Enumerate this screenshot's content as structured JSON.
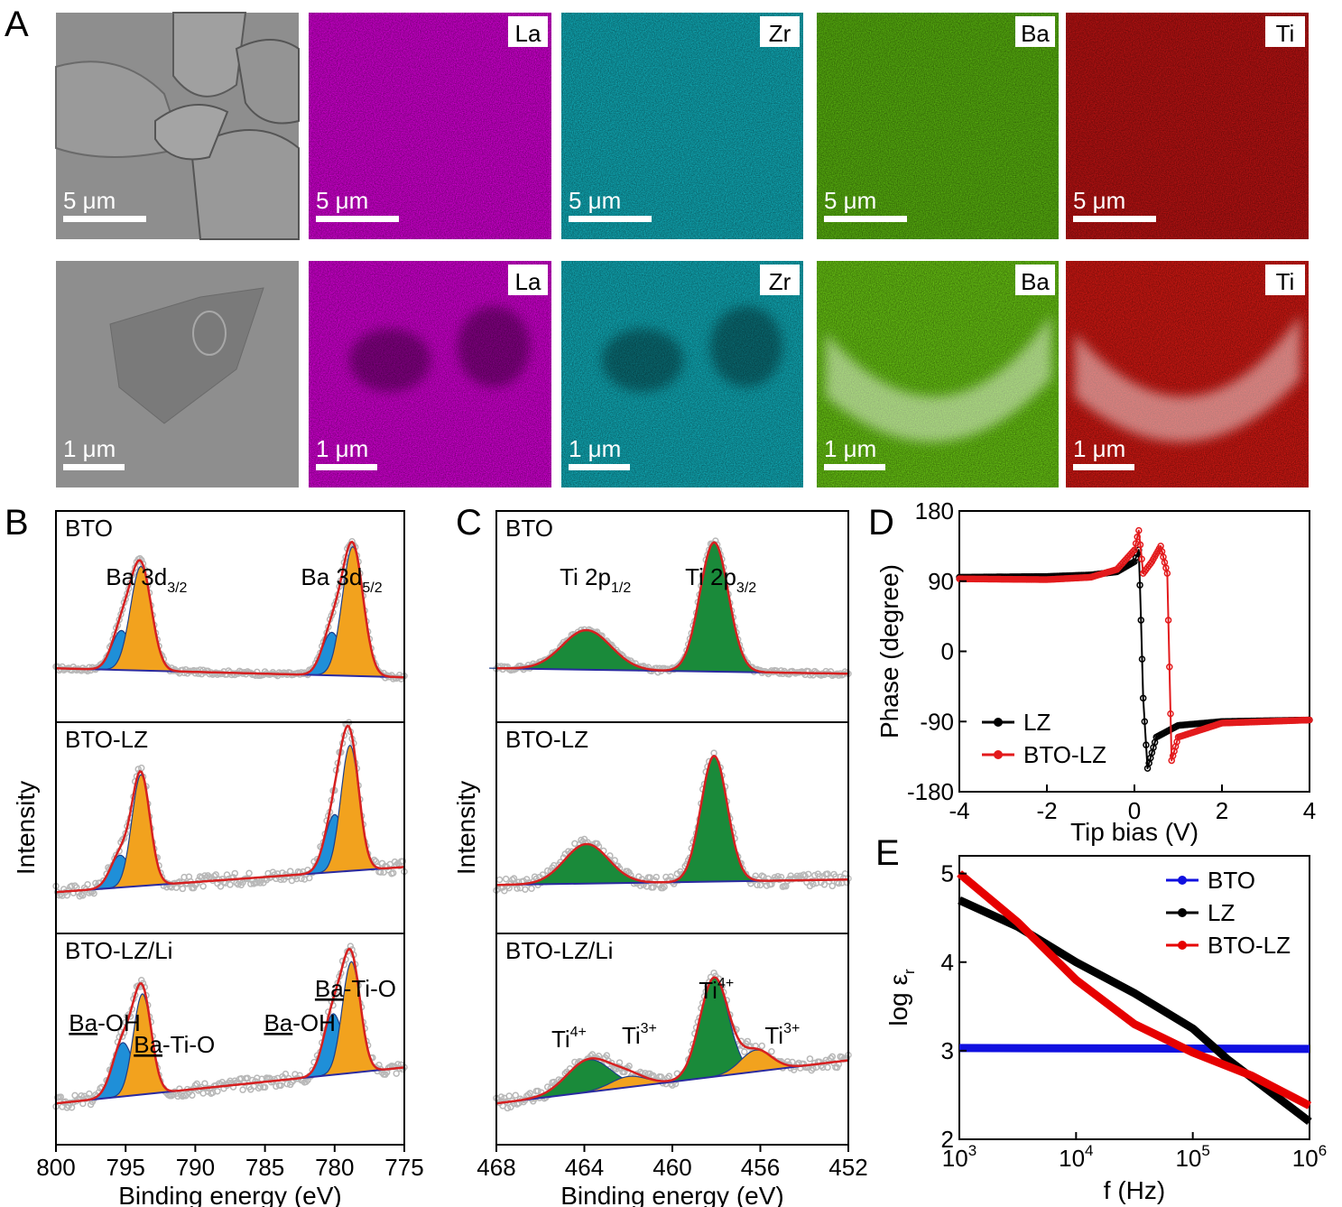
{
  "panels": {
    "A": {
      "letter": "A",
      "rows": [
        {
          "scale_label": "5 μm",
          "tiles": [
            {
              "kind": "sem",
              "tag": ""
            },
            {
              "kind": "map",
              "tag": "La",
              "color": "#e000e0"
            },
            {
              "kind": "map",
              "tag": "Zr",
              "color": "#12b7c4"
            },
            {
              "kind": "map",
              "tag": "Ba",
              "color": "#5fbf10"
            },
            {
              "kind": "map",
              "tag": "Ti",
              "color": "#c81414"
            }
          ]
        },
        {
          "scale_label": "1 μm",
          "tiles": [
            {
              "kind": "sem",
              "tag": ""
            },
            {
              "kind": "map",
              "tag": "La",
              "color": "#e000e0"
            },
            {
              "kind": "map",
              "tag": "Zr",
              "color": "#12b7c4"
            },
            {
              "kind": "map",
              "tag": "Ba",
              "color": "#6fd214"
            },
            {
              "kind": "map",
              "tag": "Ti",
              "color": "#e01a14"
            }
          ]
        }
      ]
    },
    "B": {
      "letter": "B"
    },
    "C": {
      "letter": "C"
    },
    "D": {
      "letter": "D"
    },
    "E": {
      "letter": "E"
    }
  },
  "chart_data": [
    {
      "id": "B",
      "type": "line",
      "xlabel": "Binding energy (eV)",
      "ylabel": "Intensity",
      "xlim": [
        800,
        775
      ],
      "xticks": [
        "800",
        "795",
        "790",
        "785",
        "780",
        "775"
      ],
      "subplots": [
        {
          "label": "BTO",
          "peak_labels": [
            {
              "text": "Ba 3d",
              "sub": "3/2",
              "x": 793.5
            },
            {
              "text": "Ba 3d",
              "sub": "5/2",
              "x": 779.5
            }
          ],
          "baseline": [
            [
              800,
              0.25
            ],
            [
              775,
              0.2
            ]
          ],
          "peaks": [
            {
              "center": 795.3,
              "height": 0.22,
              "sigma": 0.7,
              "color": "#1f8fd8"
            },
            {
              "center": 793.9,
              "height": 0.58,
              "sigma": 0.75,
              "color": "#f2a21e"
            },
            {
              "center": 780.2,
              "height": 0.24,
              "sigma": 0.7,
              "color": "#1f8fd8"
            },
            {
              "center": 778.7,
              "height": 0.72,
              "sigma": 0.75,
              "color": "#f2a21e"
            }
          ]
        },
        {
          "label": "BTO-LZ",
          "peak_labels": [],
          "baseline": [
            [
              800,
              0.18
            ],
            [
              775,
              0.32
            ]
          ],
          "peaks": [
            {
              "center": 795.4,
              "height": 0.18,
              "sigma": 0.7,
              "color": "#1f8fd8"
            },
            {
              "center": 793.9,
              "height": 0.62,
              "sigma": 0.65,
              "color": "#f2a21e"
            },
            {
              "center": 780.0,
              "height": 0.32,
              "sigma": 0.7,
              "color": "#1f8fd8"
            },
            {
              "center": 778.9,
              "height": 0.7,
              "sigma": 0.65,
              "color": "#f2a21e"
            }
          ]
        },
        {
          "label": "BTO-LZ/Li",
          "peak_labels": [
            {
              "text": "Ba-OH",
              "underline": "Ba",
              "x": 796.5
            },
            {
              "text": "Ba-Ti-O",
              "underline": "Ba",
              "x": 791.5
            },
            {
              "text": "Ba-OH",
              "underline": "Ba",
              "x": 782.5
            },
            {
              "text": "Ba-Ti-O",
              "underline": "Ba",
              "x": 778.5
            }
          ],
          "baseline": [
            [
              800,
              0.18
            ],
            [
              775,
              0.38
            ]
          ],
          "peaks": [
            {
              "center": 795.2,
              "height": 0.3,
              "sigma": 0.75,
              "color": "#1f8fd8"
            },
            {
              "center": 793.8,
              "height": 0.56,
              "sigma": 0.65,
              "color": "#f2a21e"
            },
            {
              "center": 780.1,
              "height": 0.34,
              "sigma": 0.7,
              "color": "#1f8fd8"
            },
            {
              "center": 778.8,
              "height": 0.62,
              "sigma": 0.65,
              "color": "#f2a21e"
            }
          ]
        }
      ]
    },
    {
      "id": "C",
      "type": "line",
      "xlabel": "Binding energy (eV)",
      "ylabel": "Intensity",
      "xlim": [
        468,
        452
      ],
      "xticks": [
        "468",
        "464",
        "460",
        "456",
        "452"
      ],
      "subplots": [
        {
          "label": "BTO",
          "peak_labels": [
            {
              "text": "Ti 2p",
              "sub": "1/2",
              "x": 463.5
            },
            {
              "text": "Ti 2p",
              "sub": "3/2",
              "x": 457.8
            }
          ],
          "baseline": [
            [
              468,
              0.25
            ],
            [
              452,
              0.22
            ]
          ],
          "peaks": [
            {
              "center": 463.9,
              "height": 0.22,
              "sigma": 1.1,
              "color": "#1a8a3a"
            },
            {
              "center": 458.1,
              "height": 0.72,
              "sigma": 0.65,
              "color": "#1a8a3a"
            }
          ]
        },
        {
          "label": "BTO-LZ",
          "peak_labels": [],
          "baseline": [
            [
              468,
              0.22
            ],
            [
              452,
              0.25
            ]
          ],
          "peaks": [
            {
              "center": 463.9,
              "height": 0.22,
              "sigma": 1.0,
              "color": "#1a8a3a"
            },
            {
              "center": 458.1,
              "height": 0.7,
              "sigma": 0.6,
              "color": "#1a8a3a"
            }
          ]
        },
        {
          "label": "BTO-LZ/Li",
          "peak_labels": [
            {
              "text": "Ti",
              "sup": "4+",
              "x": 464.7
            },
            {
              "text": "Ti",
              "sup": "3+",
              "x": 461.5
            },
            {
              "text": "Ti",
              "sup": "4+",
              "x": 458.0
            },
            {
              "text": "Ti",
              "sup": "3+",
              "x": 455.0
            }
          ],
          "baseline": [
            [
              468,
              0.18
            ],
            [
              452,
              0.42
            ]
          ],
          "peaks": [
            {
              "center": 463.8,
              "height": 0.18,
              "sigma": 1.0,
              "color": "#1a8a3a"
            },
            {
              "center": 462.0,
              "height": 0.06,
              "sigma": 0.8,
              "color": "#f2a21e"
            },
            {
              "center": 458.1,
              "height": 0.55,
              "sigma": 0.65,
              "color": "#1a8a3a"
            },
            {
              "center": 456.2,
              "height": 0.12,
              "sigma": 0.7,
              "color": "#f2a21e"
            }
          ]
        }
      ]
    },
    {
      "id": "D",
      "type": "line",
      "xlabel": "Tip bias (V)",
      "ylabel": "Phase (degree)",
      "xlim": [
        -4,
        4
      ],
      "ylim": [
        -180,
        180
      ],
      "xticks": [
        "-4",
        "-2",
        "0",
        "2",
        "4"
      ],
      "yticks": [
        "180",
        "90",
        "0",
        "-90",
        "-180"
      ],
      "legend": "bottom-left",
      "series": [
        {
          "name": "LZ",
          "color": "#000000",
          "points": [
            [
              -4,
              95
            ],
            [
              -2,
              96
            ],
            [
              -1,
              98
            ],
            [
              -0.4,
              102
            ],
            [
              0,
              115
            ],
            [
              0.1,
              130
            ],
            [
              0.15,
              40
            ],
            [
              0.2,
              -60
            ],
            [
              0.3,
              -150
            ],
            [
              0.5,
              -110
            ],
            [
              1,
              -95
            ],
            [
              2,
              -90
            ],
            [
              4,
              -88
            ]
          ]
        },
        {
          "name": "BTO-LZ",
          "color": "#e31a1c",
          "points": [
            [
              -4,
              93
            ],
            [
              -2,
              92
            ],
            [
              -1,
              95
            ],
            [
              -0.4,
              105
            ],
            [
              0,
              130
            ],
            [
              0.1,
              155
            ],
            [
              0.2,
              100
            ],
            [
              0.4,
              115
            ],
            [
              0.6,
              135
            ],
            [
              0.75,
              100
            ],
            [
              0.8,
              -20
            ],
            [
              0.85,
              -140
            ],
            [
              1,
              -110
            ],
            [
              2,
              -92
            ],
            [
              4,
              -88
            ]
          ]
        }
      ]
    },
    {
      "id": "E",
      "type": "line",
      "xlabel": "f (Hz)",
      "ylabel": "log ε",
      "ylabel_sub": "r",
      "xlim": [
        3,
        6
      ],
      "ylim": [
        2,
        5.2
      ],
      "xticks": [
        {
          "base": "10",
          "exp": "3"
        },
        {
          "base": "10",
          "exp": "4"
        },
        {
          "base": "10",
          "exp": "5"
        },
        {
          "base": "10",
          "exp": "6"
        }
      ],
      "yticks": [
        "2",
        "3",
        "4",
        "5"
      ],
      "legend": "top-right",
      "series": [
        {
          "name": "BTO",
          "color": "#1010e0",
          "points": [
            [
              3,
              3.03
            ],
            [
              6,
              3.02
            ]
          ]
        },
        {
          "name": "LZ",
          "color": "#000000",
          "points": [
            [
              3,
              4.7
            ],
            [
              3.5,
              4.4
            ],
            [
              4,
              4.0
            ],
            [
              4.5,
              3.65
            ],
            [
              5,
              3.25
            ],
            [
              5.3,
              2.9
            ],
            [
              5.6,
              2.6
            ],
            [
              6,
              2.2
            ]
          ]
        },
        {
          "name": "BTO-LZ",
          "color": "#e60000",
          "points": [
            [
              3,
              5.0
            ],
            [
              3.5,
              4.45
            ],
            [
              4,
              3.8
            ],
            [
              4.5,
              3.3
            ],
            [
              5,
              2.98
            ],
            [
              5.5,
              2.72
            ],
            [
              6,
              2.38
            ]
          ]
        }
      ]
    }
  ]
}
